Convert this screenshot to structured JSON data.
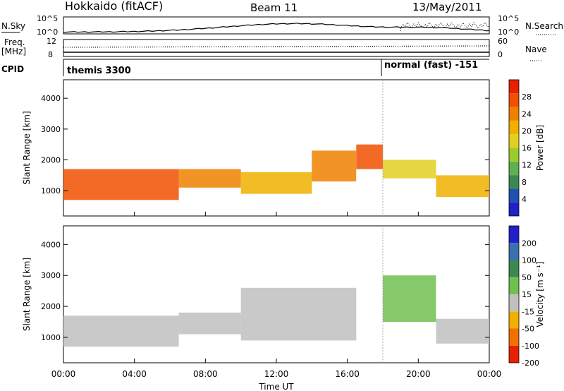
{
  "header": {
    "title": "Hokkaido (fitACF)",
    "beam": "Beam 11",
    "date": "13/May/2011"
  },
  "strips": {
    "nsky_label": "N.Sky",
    "nsky_ticks": [
      "10^5",
      "10^0"
    ],
    "nsearch_label": "N.Search",
    "nsearch_ticks": [
      "10^5",
      "10^0"
    ],
    "freq_label_line1": "Freq.",
    "freq_label_line2": "[MHz]",
    "freq_ticks": [
      "12",
      "8"
    ],
    "nave_label": "Nave",
    "nave_ticks": [
      "60",
      "0"
    ],
    "cpid_label": "CPID",
    "cpid_segments": [
      "themis 3300",
      "normal (fast) -151"
    ]
  },
  "chart_data": [
    {
      "type": "heatmap",
      "name": "power",
      "ylabel": "Slant Range [km]",
      "xlabel": "Time UT",
      "xlim": [
        "00:00",
        "24:00"
      ],
      "ylim": [
        180,
        4600
      ],
      "yticks": [
        1000,
        2000,
        3000,
        4000
      ],
      "xticks": [
        "00:00",
        "04:00",
        "08:00",
        "12:00",
        "16:00",
        "20:00",
        "00:00"
      ],
      "colorbar": {
        "label": "Power [dB]",
        "ticks": [
          "4",
          "8",
          "12",
          "16",
          "20",
          "24",
          "28"
        ],
        "colors": [
          "#2020c8",
          "#2050b0",
          "#3a8a50",
          "#5fb04f",
          "#9ccc2c",
          "#e0d020",
          "#f0b000",
          "#f08000",
          "#f05000",
          "#e82000"
        ]
      },
      "bands": [
        {
          "t0": 0.0,
          "t1": 6.5,
          "r0": 700,
          "r1": 1700,
          "value": 26
        },
        {
          "t0": 6.5,
          "t1": 10.0,
          "r0": 1100,
          "r1": 1700,
          "value": 24
        },
        {
          "t0": 10.0,
          "t1": 14.0,
          "r0": 900,
          "r1": 1600,
          "value": 20
        },
        {
          "t0": 14.0,
          "t1": 16.5,
          "r0": 1300,
          "r1": 2300,
          "value": 22
        },
        {
          "t0": 16.5,
          "t1": 18.0,
          "r0": 1700,
          "r1": 2500,
          "value": 27
        },
        {
          "t0": 18.0,
          "t1": 21.0,
          "r0": 1400,
          "r1": 2000,
          "value": 18
        },
        {
          "t0": 21.0,
          "t1": 24.0,
          "r0": 800,
          "r1": 1500,
          "value": 20
        }
      ]
    },
    {
      "type": "heatmap",
      "name": "velocity",
      "ylabel": "Slant Range [km]",
      "xlabel": "Time UT",
      "xlim": [
        "00:00",
        "24:00"
      ],
      "ylim": [
        180,
        4600
      ],
      "yticks": [
        1000,
        2000,
        3000,
        4000
      ],
      "xticks": [
        "00:00",
        "04:00",
        "08:00",
        "12:00",
        "16:00",
        "20:00",
        "00:00"
      ],
      "colorbar": {
        "label": "Velocity [m s⁻¹]",
        "ticks": [
          "200",
          "100",
          "50",
          "15",
          "-15",
          "-50",
          "-100",
          "-200"
        ],
        "colors": [
          "#2020c8",
          "#3a70b0",
          "#3a8a50",
          "#70c050",
          "#c0c0c0",
          "#f0b000",
          "#f07000",
          "#e82000"
        ]
      },
      "bands": [
        {
          "t0": 0.0,
          "t1": 6.5,
          "r0": 700,
          "r1": 1700,
          "value": 0
        },
        {
          "t0": 6.5,
          "t1": 10.0,
          "r0": 1100,
          "r1": 1800,
          "value": 0
        },
        {
          "t0": 10.0,
          "t1": 16.5,
          "r0": 900,
          "r1": 2600,
          "value": -5
        },
        {
          "t0": 18.0,
          "t1": 21.0,
          "r0": 1500,
          "r1": 3000,
          "value": 40
        },
        {
          "t0": 21.0,
          "t1": 24.0,
          "r0": 800,
          "r1": 1600,
          "value": 5
        }
      ]
    }
  ]
}
